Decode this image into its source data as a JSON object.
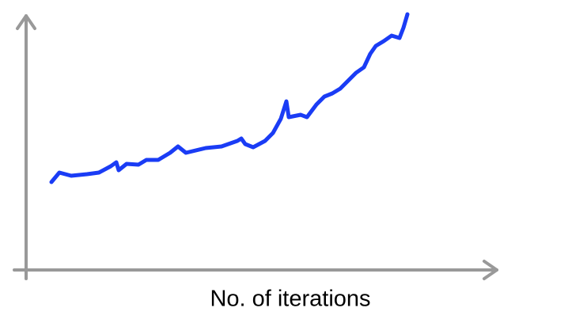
{
  "chart_data": {
    "type": "line",
    "x_label": "No. of iterations",
    "x": [
      32,
      42,
      57,
      77,
      92,
      107,
      114,
      117,
      127,
      142,
      152,
      167,
      182,
      192,
      202,
      227,
      247,
      267,
      272,
      277,
      287,
      302,
      312,
      322,
      329,
      332,
      347,
      355,
      367,
      377,
      387,
      397,
      407,
      417,
      427,
      435,
      442,
      452,
      462,
      472,
      477,
      482
    ],
    "values": [
      110,
      122,
      118,
      120,
      122,
      130,
      135,
      125,
      133,
      132,
      138,
      138,
      147,
      155,
      147,
      153,
      155,
      162,
      165,
      158,
      154,
      162,
      172,
      190,
      212,
      192,
      195,
      192,
      208,
      218,
      222,
      228,
      238,
      248,
      255,
      272,
      282,
      288,
      295,
      292,
      305,
      322
    ],
    "color": "#1a3cf5",
    "xlim": [
      0,
      600
    ],
    "ylim": [
      0,
      325
    ]
  }
}
